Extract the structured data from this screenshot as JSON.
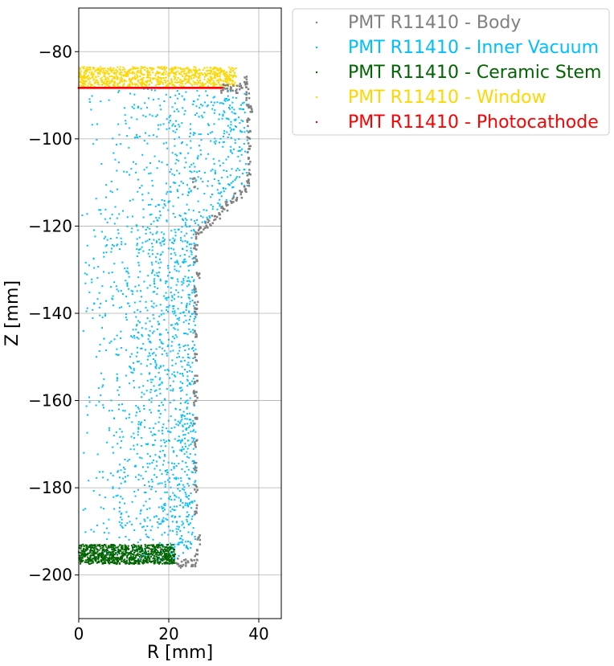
{
  "chart_data": {
    "type": "scatter",
    "title": "",
    "xlabel": "R [mm]",
    "ylabel": "Z [mm]",
    "xlim": [
      0,
      45
    ],
    "ylim": [
      -210,
      -70
    ],
    "grid": true,
    "legend_placement": "outside-top-right",
    "x_ticks": [
      {
        "value": 0,
        "label": "0"
      },
      {
        "value": 20,
        "label": "20"
      },
      {
        "value": 40,
        "label": "40"
      }
    ],
    "y_ticks": [
      {
        "value": -80,
        "label": "−80"
      },
      {
        "value": -100,
        "label": "−100"
      },
      {
        "value": -120,
        "label": "−120"
      },
      {
        "value": -140,
        "label": "−140"
      },
      {
        "value": -160,
        "label": "−160"
      },
      {
        "value": -180,
        "label": "−180"
      },
      {
        "value": -200,
        "label": "−200"
      }
    ],
    "series": [
      {
        "name": "PMT R11410 - Body",
        "color": "#808080",
        "points": [
          [
            32,
            -88.5
          ],
          [
            33,
            -88.5
          ],
          [
            34,
            -88.5
          ],
          [
            35,
            -88.5
          ],
          [
            36,
            -88.5
          ],
          [
            37,
            -86.5
          ],
          [
            37.3,
            -88
          ],
          [
            37.5,
            -90
          ],
          [
            37.5,
            -92
          ],
          [
            38.3,
            -93.5
          ],
          [
            37.7,
            -96
          ],
          [
            37.8,
            -99
          ],
          [
            37.8,
            -102
          ],
          [
            37.8,
            -105
          ],
          [
            37.8,
            -108
          ],
          [
            37.8,
            -110
          ],
          [
            37,
            -111.5
          ],
          [
            36,
            -112.5
          ],
          [
            35,
            -113.5
          ],
          [
            34,
            -114.5
          ],
          [
            33,
            -115.5
          ],
          [
            32,
            -116.5
          ],
          [
            31,
            -117.5
          ],
          [
            30,
            -118.5
          ],
          [
            29,
            -119.3
          ],
          [
            28,
            -120
          ],
          [
            27,
            -120.8
          ],
          [
            26.3,
            -122
          ],
          [
            26,
            -125
          ],
          [
            26,
            -128
          ],
          [
            26.6,
            -131.5
          ],
          [
            26,
            -135
          ],
          [
            26,
            -140
          ],
          [
            26,
            -145
          ],
          [
            26,
            -150
          ],
          [
            26,
            -155
          ],
          [
            26,
            -160
          ],
          [
            26,
            -165
          ],
          [
            26,
            -170
          ],
          [
            26,
            -175
          ],
          [
            26,
            -180
          ],
          [
            26,
            -185
          ],
          [
            26.6,
            -192
          ],
          [
            26,
            -195
          ],
          [
            26,
            -197
          ],
          [
            25,
            -197.3
          ],
          [
            24,
            -197.3
          ],
          [
            23,
            -197.3
          ],
          [
            22,
            -197.3
          ],
          [
            25.5,
            -110
          ],
          [
            26.1,
            -138
          ],
          [
            25.8,
            -158
          ]
        ]
      },
      {
        "name": "PMT R11410 - Inner Vacuum",
        "color": "#00BFFF",
        "bounds": {
          "x_max_top": 37.5,
          "x_max_bottom": 26,
          "z_top": -88.5,
          "z_bottom": -196.5,
          "taper_top": -111,
          "taper_bottom": -121
        },
        "count": 1800
      },
      {
        "name": "PMT R11410 - Ceramic Stem",
        "color": "#006400",
        "region": {
          "x": [
            0,
            21.5
          ],
          "z": [
            -197.5,
            -193
          ]
        },
        "count": 900
      },
      {
        "name": "PMT R11410 - Window",
        "color": "#FFD700",
        "region": {
          "x": [
            0,
            35
          ],
          "z": [
            -88,
            -83.5
          ]
        },
        "count": 900
      },
      {
        "name": "PMT R11410 - Photocathode",
        "color": "#FF0000",
        "line": {
          "x": [
            0,
            32
          ],
          "z": -88.3
        }
      }
    ]
  }
}
